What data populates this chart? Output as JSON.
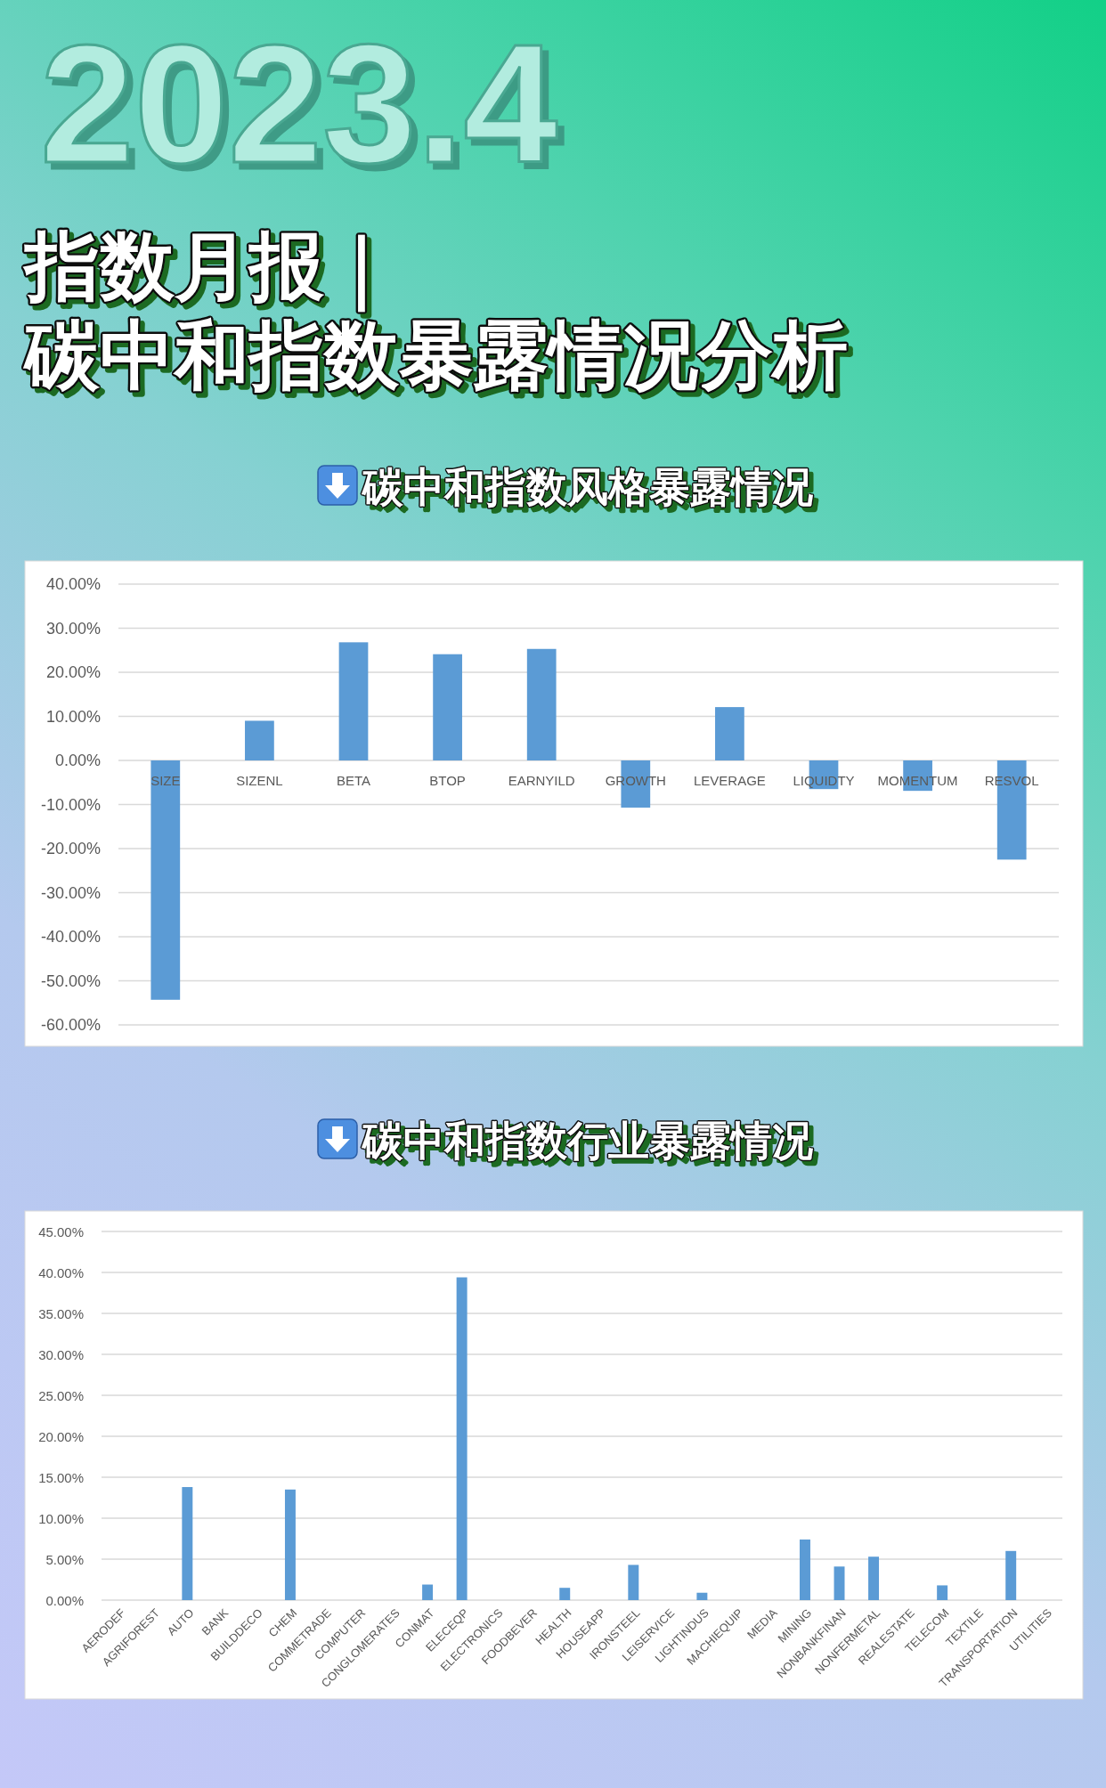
{
  "chart_data": [
    {
      "type": "other",
      "annotations": [
        "2023.4"
      ],
      "title": "指数月报｜",
      "subtitle": "碳中和指数暴露情况分析"
    },
    {
      "type": "bar",
      "title": "碳中和指数风格暴露情况",
      "categories": [
        "SIZE",
        "SIZENL",
        "BETA",
        "BTOP",
        "EARNYILD",
        "GROWTH",
        "LEVERAGE",
        "LIQUIDTY",
        "MOMENTUM",
        "RESVOL"
      ],
      "values": [
        -54.3,
        9.0,
        26.8,
        24.1,
        25.3,
        -10.7,
        12.1,
        -6.5,
        -6.9,
        -22.5
      ],
      "color": "#5b9bd5",
      "ylim": [
        -60,
        40
      ],
      "yticks": [
        {
          "value": -60,
          "label": "-60.00%"
        },
        {
          "value": -50,
          "label": "-50.00%"
        },
        {
          "value": -40,
          "label": "-40.00%"
        },
        {
          "value": -30,
          "label": "-30.00%"
        },
        {
          "value": -20,
          "label": "-20.00%"
        },
        {
          "value": -10,
          "label": "-10.00%"
        },
        {
          "value": 0,
          "label": "0.00%"
        },
        {
          "value": 10,
          "label": "10.00%"
        },
        {
          "value": 20,
          "label": "20.00%"
        },
        {
          "value": 30,
          "label": "30.00%"
        },
        {
          "value": 40,
          "label": "40.00%"
        }
      ],
      "grid": "y"
    },
    {
      "type": "bar",
      "title": "碳中和指数行业暴露情况",
      "categories": [
        "AERODEF",
        "AGRIFOREST",
        "AUTO",
        "BANK",
        "BUILDDECO",
        "CHEM",
        "COMMETRADE",
        "COMPUTER",
        "CONGLOMERATES",
        "CONMAT",
        "ELECEQP",
        "ELECTRONICS",
        "FOODBEVER",
        "HEALTH",
        "HOUSEAPP",
        "IRONSTEEL",
        "LEISERVICE",
        "LIGHTINDUS",
        "MACHIEQUIP",
        "MEDIA",
        "MINING",
        "NONBANKFINAN",
        "NONFERMETAL",
        "REALESTATE",
        "TELECOM",
        "TEXTILE",
        "TRANSPORTATION",
        "UTILITIES"
      ],
      "values": [
        0,
        0,
        13.8,
        0,
        0,
        13.5,
        0,
        0,
        0,
        1.9,
        39.4,
        0,
        0,
        1.5,
        0,
        4.3,
        0,
        0.9,
        0,
        0,
        7.4,
        4.1,
        5.3,
        0,
        1.8,
        0,
        6.0,
        0
      ],
      "color": "#5b9bd5",
      "ylim": [
        0,
        45
      ],
      "yticks": [
        {
          "value": 0,
          "label": "0.00%"
        },
        {
          "value": 5,
          "label": "5.00%"
        },
        {
          "value": 10,
          "label": "10.00%"
        },
        {
          "value": 15,
          "label": "15.00%"
        },
        {
          "value": 20,
          "label": "20.00%"
        },
        {
          "value": 25,
          "label": "25.00%"
        },
        {
          "value": 30,
          "label": "30.00%"
        },
        {
          "value": 35,
          "label": "35.00%"
        },
        {
          "value": 40,
          "label": "40.00%"
        },
        {
          "value": 45,
          "label": "45.00%"
        }
      ],
      "grid": "y"
    }
  ]
}
